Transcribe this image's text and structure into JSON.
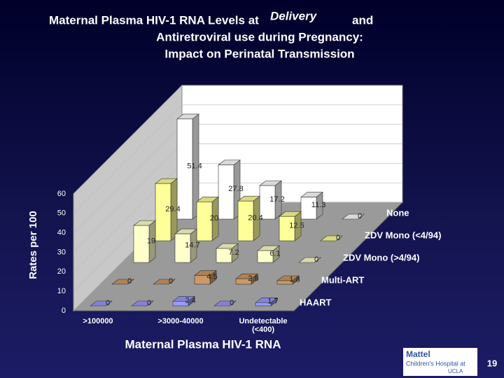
{
  "chart_data": {
    "type": "bar3d",
    "title": [
      "Maternal Plasma HIV-1 RNA Levels at",
      "Delivery",
      "and",
      "Antiretroviral use during Pregnancy:",
      "Impact on Perinatal Transmission"
    ],
    "y_label": "Rates per 100",
    "x_label": "Maternal Plasma HIV-1 RNA",
    "categories": [
      ">100000",
      null,
      ">3000-40000",
      null,
      "Undetectable (<400)"
    ],
    "series": [
      {
        "name": "HAART",
        "color": "#9999ff",
        "values": [
          0,
          0,
          2.4,
          0,
          1.7
        ]
      },
      {
        "name": "Multi-ART",
        "color": "#cc9966",
        "values": [
          0,
          0,
          4.5,
          2.8,
          1.8
        ]
      },
      {
        "name": "ZDV Mono (>4/94)",
        "color": "#ffffcc",
        "values": [
          19,
          14.7,
          7.2,
          6.1,
          0
        ]
      },
      {
        "name": "ZDV Mono (<4/94)",
        "color": "#ffff99",
        "values": [
          29.4,
          20,
          20.4,
          12.5,
          0
        ]
      },
      {
        "name": "None",
        "color": "#ffffff",
        "values": [
          51.4,
          27.8,
          17.2,
          11.3,
          0
        ]
      }
    ],
    "ylim": [
      0,
      60
    ],
    "yticks": [
      0,
      10,
      20,
      30,
      40,
      50,
      60
    ],
    "grid": true
  },
  "footer": {
    "logo": [
      "Mattel",
      "Children's Hospital at",
      "UCLA"
    ],
    "page": "19"
  }
}
